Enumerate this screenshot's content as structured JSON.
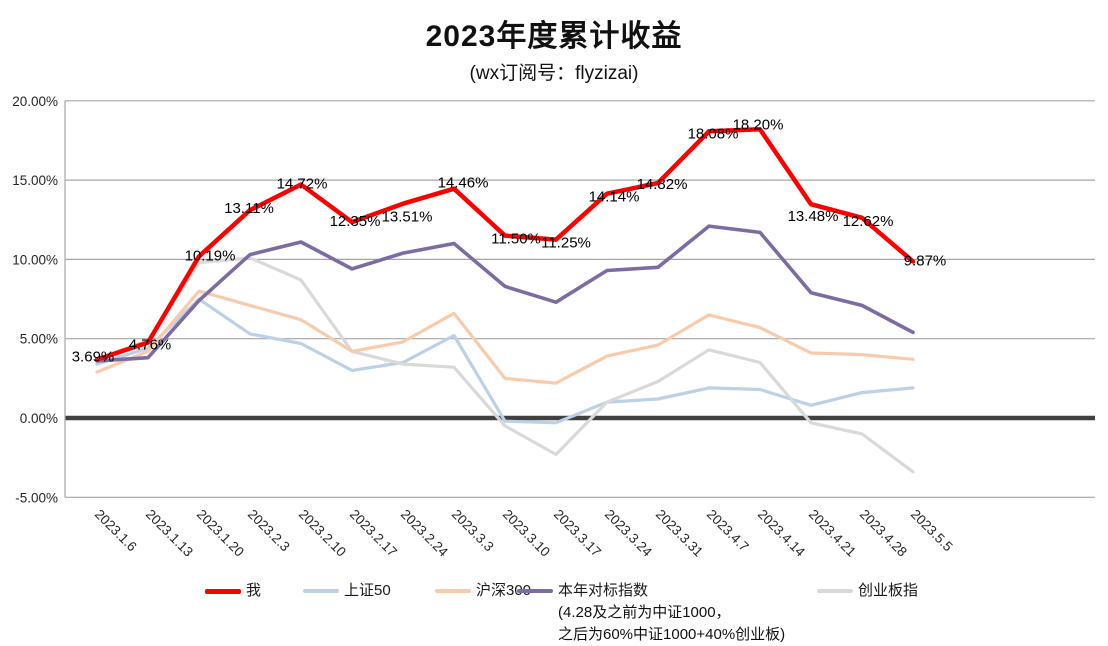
{
  "header": {
    "title": "2023年度累计收益",
    "subtitle": "(wx订阅号：flyzizai)"
  },
  "chart_data": {
    "type": "line",
    "title": "2023年度累计收益",
    "subtitle": "(wx订阅号：flyzizai)",
    "categories": [
      "2023.1.6",
      "2023.1.13",
      "2023.1.20",
      "2023.2.3",
      "2023.2.10",
      "2023.2.17",
      "2023.2.24",
      "2023.3.3",
      "2023.3.10",
      "2023.3.17",
      "2023.3.24",
      "2023.3.31",
      "2023.4.7",
      "2023.4.14",
      "2023.4.21",
      "2023.4.28",
      "2023.5.5"
    ],
    "series": [
      {
        "name": "我",
        "key": "me",
        "color": "#ff0000",
        "values": [
          3.69,
          4.76,
          10.19,
          13.11,
          14.72,
          12.35,
          13.51,
          14.46,
          11.5,
          11.25,
          14.14,
          14.82,
          18.08,
          18.2,
          13.48,
          12.62,
          9.87
        ],
        "labels": [
          "3.69%",
          "4.76%",
          "10.19%",
          "13.11%",
          "14.72%",
          "12.35%",
          "13.51%",
          "14.46%",
          "11.50%",
          "11.25%",
          "14.14%",
          "14.82%",
          "18.08%",
          "18.20%",
          "13.48%",
          "12.62%",
          "9.87%"
        ]
      },
      {
        "name": "上证50",
        "key": "sse50",
        "color": "#bdd1e6",
        "values": [
          3.4,
          4.4,
          7.5,
          5.3,
          4.7,
          3.0,
          3.5,
          5.2,
          -0.2,
          -0.3,
          1.0,
          1.2,
          1.9,
          1.8,
          0.8,
          1.6,
          1.9
        ]
      },
      {
        "name": "沪深300",
        "key": "csi300",
        "color": "#f8cbad",
        "values": [
          2.9,
          4.2,
          8.0,
          7.1,
          6.2,
          4.2,
          4.8,
          6.6,
          2.5,
          2.2,
          3.9,
          4.6,
          6.5,
          5.7,
          4.1,
          4.0,
          3.7
        ]
      },
      {
        "name": "本年对标指数",
        "key": "benchmark",
        "color": "#7d6ba3",
        "note1": "(4.28及之前为中证1000，",
        "note2": "之后为60%中证1000+40%创业板)",
        "values": [
          3.6,
          3.8,
          7.4,
          10.3,
          11.1,
          9.4,
          10.4,
          11.0,
          8.3,
          7.3,
          9.3,
          9.5,
          12.1,
          11.7,
          7.9,
          7.1,
          5.4
        ]
      },
      {
        "name": "创业板指",
        "key": "chinext",
        "color": "#d9d9d9",
        "values": [
          3.7,
          4.9,
          9.8,
          10.1,
          8.7,
          4.2,
          3.4,
          3.2,
          -0.5,
          -2.3,
          1.0,
          2.3,
          4.3,
          3.5,
          -0.3,
          -1.0,
          -3.4
        ]
      }
    ],
    "ylim": [
      -5,
      20
    ],
    "yticks": [
      "20.00%",
      "15.00%",
      "10.00%",
      "5.00%",
      "0.00%",
      "-5.00%"
    ],
    "ytick_values": [
      20,
      15,
      10,
      5,
      0,
      -5
    ],
    "grid": true,
    "legend_position": "bottom",
    "colors": {
      "gridline": "#a6a6a6",
      "zero_axis": "#404040",
      "tick_text": "#262626",
      "data_label_text": "#000000"
    }
  }
}
